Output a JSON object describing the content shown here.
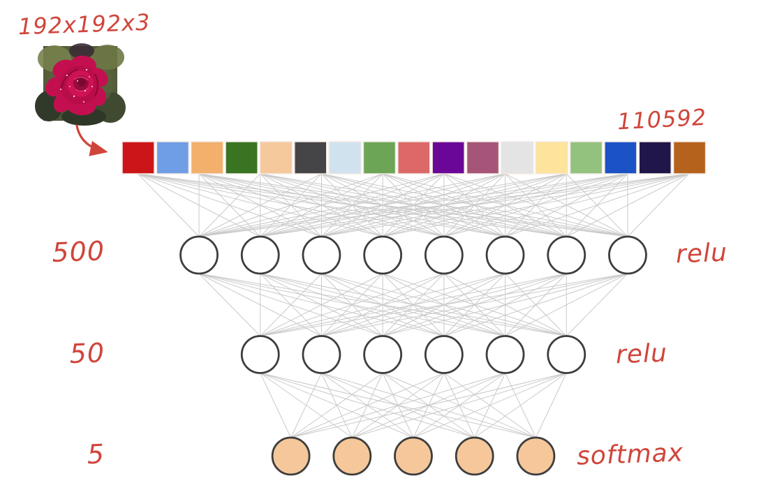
{
  "diagram": {
    "input_image": {
      "dims_label": "192x192x3",
      "image_name": "rose-photo"
    },
    "flatten": {
      "count_label": "110592",
      "pixel_colors": [
        "#cb1519",
        "#6f9de6",
        "#f2b06c",
        "#387421",
        "#f5c99c",
        "#454446",
        "#d1e2ef",
        "#6ca555",
        "#dc6968",
        "#6b0798",
        "#a65578",
        "#e4e4e4",
        "#fde39c",
        "#93c17e",
        "#1b52c5",
        "#21164a",
        "#b5621c"
      ]
    },
    "layers": [
      {
        "size_label": "500",
        "activation_label": "relu",
        "neurons": 8,
        "fill": "#ffffff"
      },
      {
        "size_label": "50",
        "activation_label": "relu",
        "neurons": 6,
        "fill": "#ffffff"
      },
      {
        "size_label": "5",
        "activation_label": "softmax",
        "neurons": 5,
        "fill": "#f5c79a"
      }
    ],
    "colors": {
      "annotation": "#d0453b",
      "connection": "#c0c0c0",
      "neuron_stroke": "#3d3d3d",
      "pixel_border": "#f3eae3"
    }
  }
}
